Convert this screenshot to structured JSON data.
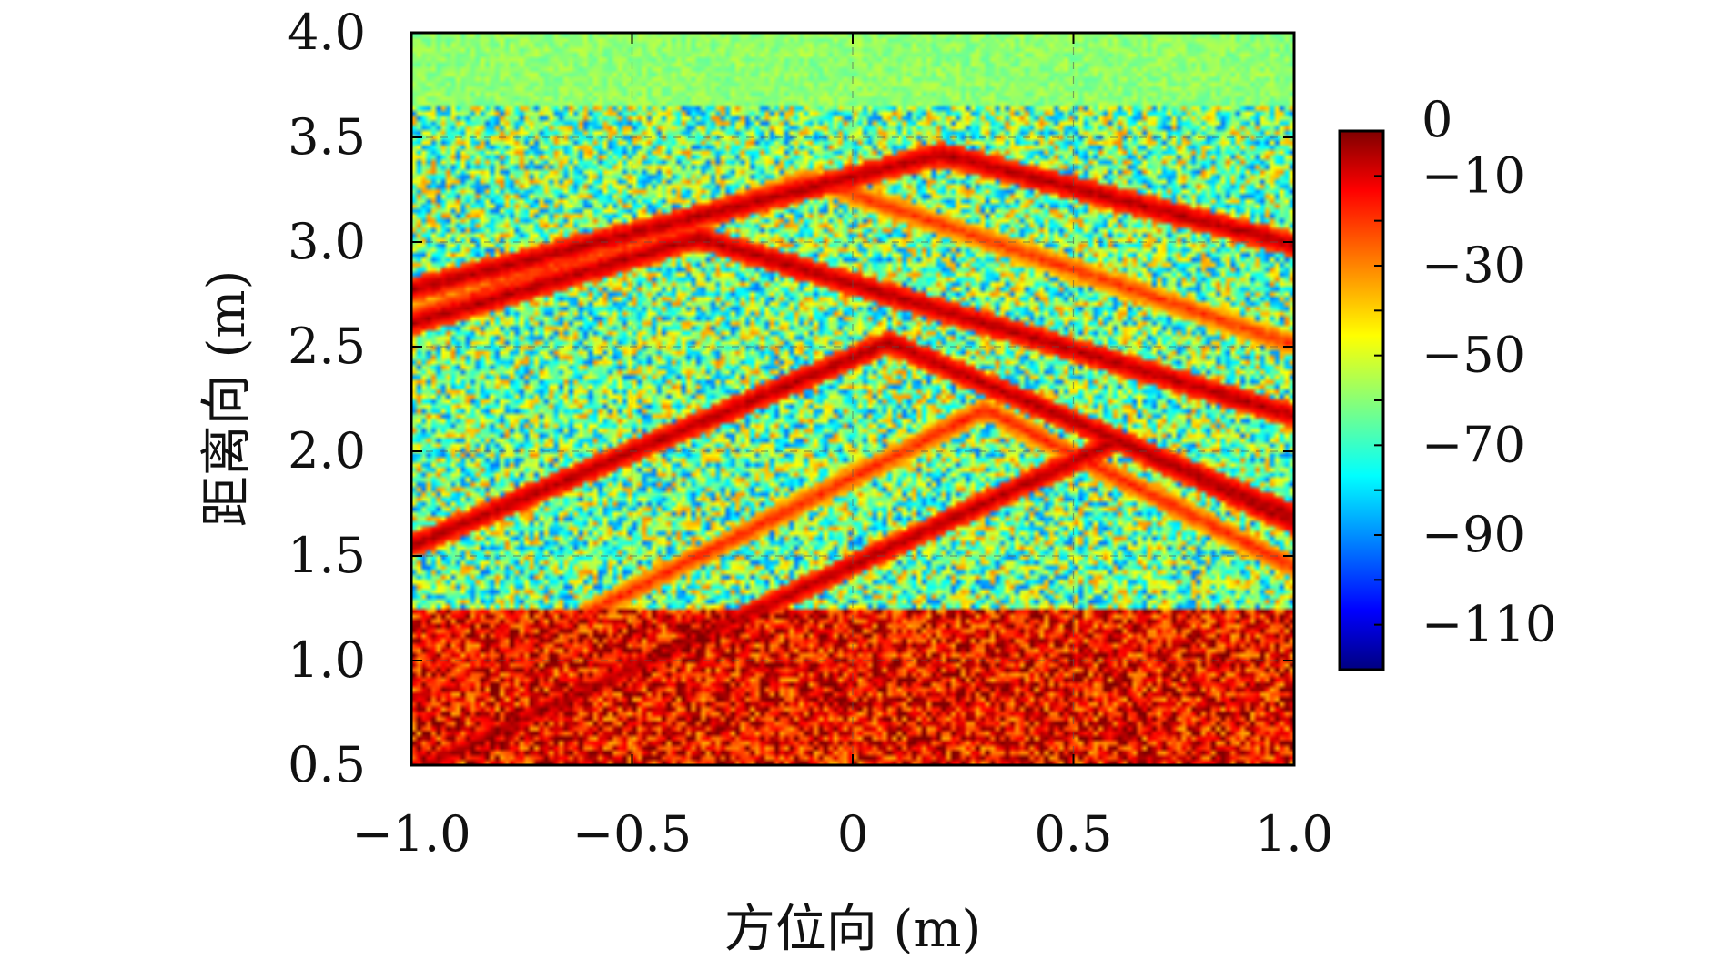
{
  "chart_data": {
    "type": "heatmap",
    "title": "",
    "xlabel": "方位向 (m)",
    "ylabel": "距离向 (m)",
    "xlim": [
      -1.0,
      1.0
    ],
    "ylim": [
      0.5,
      4.0
    ],
    "x_ticks": [
      -1.0,
      -0.5,
      0,
      0.5,
      1.0
    ],
    "x_tick_labels": [
      "−1.0",
      "−0.5",
      "0",
      "0.5",
      "1.0"
    ],
    "y_ticks": [
      0.5,
      1.0,
      1.5,
      2.0,
      2.5,
      3.0,
      3.5,
      4.0
    ],
    "y_tick_labels": [
      "0.5",
      "1.0",
      "1.5",
      "2.0",
      "2.5",
      "3.0",
      "3.5",
      "4.0"
    ],
    "grid": true,
    "colormap": "jet",
    "colorbar": {
      "range": [
        -120,
        0
      ],
      "ticks": [
        0,
        -10,
        -30,
        -50,
        -70,
        -90,
        -110
      ],
      "tick_labels": [
        "0",
        "−10",
        "−30",
        "−50",
        "−70",
        "−90",
        "−110"
      ]
    },
    "background_db": {
      "far_range_above_y": 3.65,
      "far_range_value": -58,
      "mid_value": -70,
      "near_range_below_y": 1.25,
      "near_range_value": -15
    },
    "hyperbolas": [
      {
        "apex_x": 0.2,
        "apex_y": 3.42,
        "value_db": -5,
        "curvature": 0.6
      },
      {
        "apex_x": -0.35,
        "apex_y": 3.02,
        "value_db": -5,
        "curvature": 0.7
      },
      {
        "apex_x": 0.08,
        "apex_y": 2.52,
        "value_db": -5,
        "curvature": 1.0
      },
      {
        "apex_x": 0.6,
        "apex_y": 2.05,
        "value_db": -5,
        "curvature": 1.1
      },
      {
        "apex_x": -0.1,
        "apex_y": 3.3,
        "value_db": -20,
        "curvature": 0.8
      },
      {
        "apex_x": 0.3,
        "apex_y": 2.2,
        "value_db": -18,
        "curvature": 1.2
      }
    ]
  }
}
